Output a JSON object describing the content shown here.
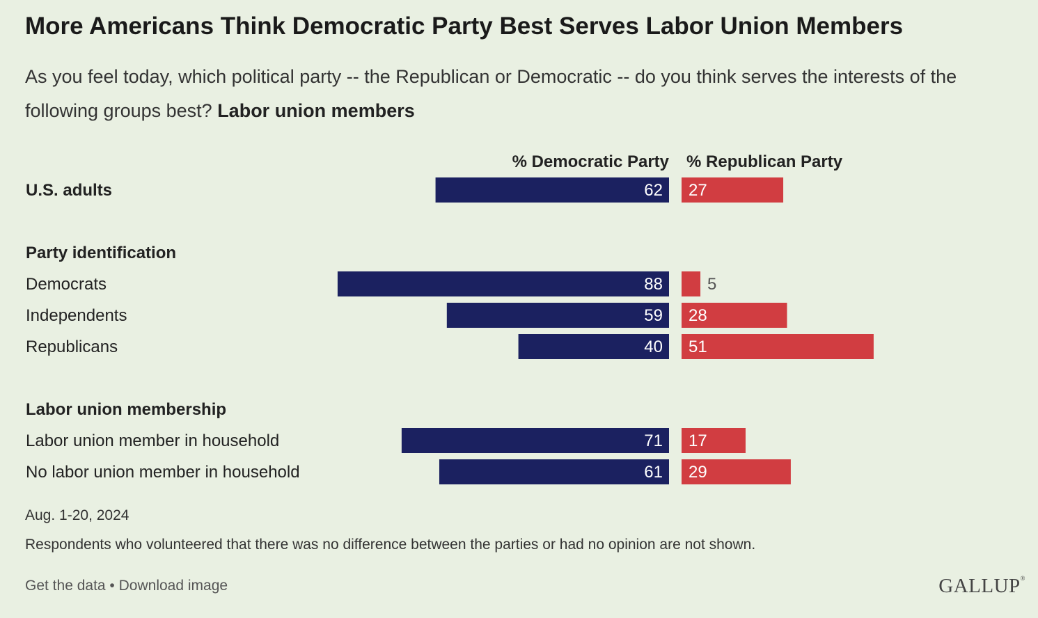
{
  "header": {
    "title": "More Americans Think Democratic Party Best Serves Labor Union Members",
    "subtitle_prefix": "As you feel today, which political party -- the Republican or Democratic -- do you think serves the interests of the following groups best?",
    "subtitle_bold": "Labor union members"
  },
  "chart_data": {
    "type": "bar",
    "orientation": "horizontal-diverging",
    "column_headers": {
      "left": "% Democratic Party",
      "right": "% Republican Party"
    },
    "series": [
      {
        "name": "% Democratic Party",
        "color": "#1b2160",
        "values": [
          62,
          88,
          59,
          40,
          71,
          61
        ]
      },
      {
        "name": "% Republican Party",
        "color": "#d13d41",
        "values": [
          27,
          5,
          28,
          51,
          17,
          29
        ]
      }
    ],
    "groups": [
      {
        "heading": "U.S. adults",
        "rows": [
          0
        ]
      },
      {
        "heading": "Party identification",
        "rows": [
          1,
          2,
          3
        ]
      },
      {
        "heading": "Labor union membership",
        "rows": [
          4,
          5
        ]
      }
    ],
    "categories": [
      "U.S. adults",
      "Democrats",
      "Independents",
      "Republicans",
      "Labor union member in household",
      "No labor union member in household"
    ]
  },
  "footer": {
    "date": "Aug. 1-20, 2024",
    "note": "Respondents who volunteered that there was no difference between the parties or had no opinion are not shown.",
    "link_data": "Get the data",
    "separator": " • ",
    "link_image": "Download image",
    "logo": "GALLUP",
    "logo_mark": "®"
  }
}
